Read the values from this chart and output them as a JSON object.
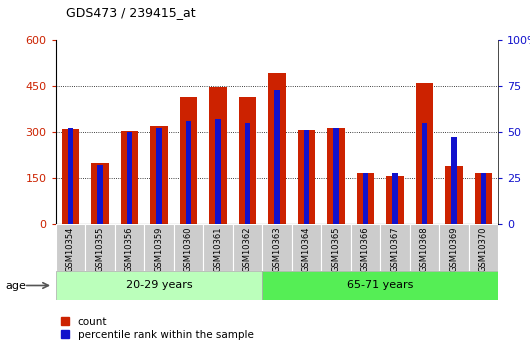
{
  "title": "GDS473 / 239415_at",
  "categories": [
    "GSM10354",
    "GSM10355",
    "GSM10356",
    "GSM10359",
    "GSM10360",
    "GSM10361",
    "GSM10362",
    "GSM10363",
    "GSM10364",
    "GSM10365",
    "GSM10366",
    "GSM10367",
    "GSM10368",
    "GSM10369",
    "GSM10370"
  ],
  "counts": [
    310,
    200,
    302,
    320,
    415,
    445,
    415,
    492,
    305,
    312,
    168,
    158,
    460,
    190,
    168
  ],
  "percentiles": [
    52,
    32,
    50,
    52,
    56,
    57,
    55,
    73,
    51,
    52,
    28,
    28,
    55,
    47,
    28
  ],
  "group1_label": "20-29 years",
  "group2_label": "65-71 years",
  "group1_count": 7,
  "group2_count": 8,
  "bar_color_red": "#cc2200",
  "bar_color_blue": "#1111cc",
  "group1_bg": "#bbffbb",
  "group2_bg": "#55ee55",
  "xlabel_area_color": "#cccccc",
  "ylim_left": [
    0,
    600
  ],
  "ylim_right": [
    0,
    100
  ],
  "yticks_left": [
    0,
    150,
    300,
    450,
    600
  ],
  "yticks_right": [
    0,
    25,
    50,
    75,
    100
  ],
  "age_label": "age",
  "legend_count": "count",
  "legend_percentile": "percentile rank within the sample",
  "left_tick_color": "#cc2200",
  "right_tick_color": "#1111cc"
}
